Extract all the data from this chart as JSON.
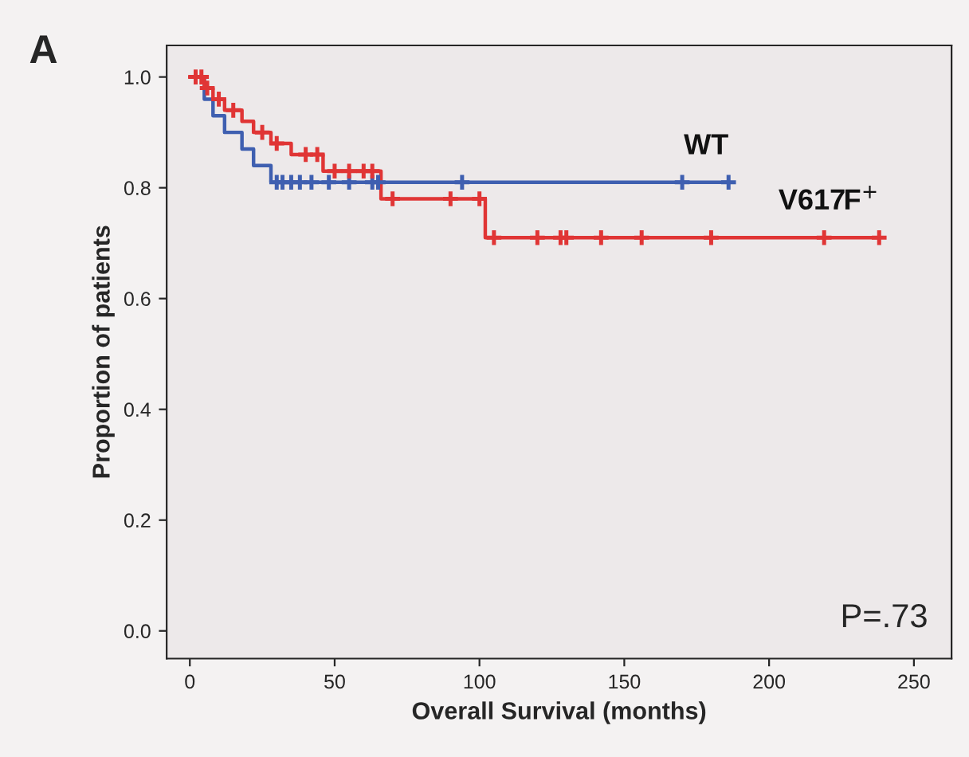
{
  "chart_data": {
    "type": "step",
    "xlabel": "Overall Survival (months)",
    "ylabel": "Proportion of patients",
    "annotations": [
      "A",
      "P=.73"
    ],
    "xlim": [
      -8,
      263
    ],
    "ylim": [
      -0.05,
      1.057
    ],
    "xticks": [
      0,
      50,
      100,
      150,
      200,
      250
    ],
    "yticks": [
      {
        "value": 0,
        "label": "0.0"
      },
      {
        "value": 0.2,
        "label": "0.2"
      },
      {
        "value": 0.4,
        "label": "0.4"
      },
      {
        "value": 0.6,
        "label": "0.6"
      },
      {
        "value": 0.8,
        "label": "0.8"
      },
      {
        "value": 1.0,
        "label": "1.0"
      }
    ],
    "series": [
      {
        "name": "WT",
        "color": "#3f5fb0",
        "x": [
          0,
          5,
          8,
          12,
          18,
          22,
          28,
          186
        ],
        "values": [
          1.0,
          0.96,
          0.93,
          0.9,
          0.87,
          0.84,
          0.81,
          0.81
        ]
      },
      {
        "name": "V617F$^{+}$",
        "color": "#e03535",
        "x": [
          0,
          5,
          8,
          12,
          18,
          22,
          28,
          35,
          38,
          46,
          66,
          102,
          238
        ],
        "values": [
          1.0,
          0.98,
          0.96,
          0.94,
          0.92,
          0.9,
          0.88,
          0.86,
          0.86,
          0.83,
          0.78,
          0.71,
          0.71
        ]
      },
      {
        "type": "scatter",
        "marker": "cross",
        "color": "#3f5fb0",
        "x": [
          30,
          32,
          35,
          38,
          42,
          48,
          55,
          63,
          65,
          94,
          170,
          186
        ],
        "values": [
          0.81,
          0.81,
          0.81,
          0.81,
          0.81,
          0.81,
          0.81,
          0.81,
          0.81,
          0.81,
          0.81,
          0.81
        ]
      },
      {
        "type": "scatter",
        "marker": "cross",
        "color": "#e03535",
        "x": [
          2,
          4,
          6,
          10,
          15,
          25,
          30,
          40,
          44,
          50,
          55,
          60,
          63,
          70,
          90,
          100,
          105,
          120,
          128,
          130,
          142,
          156,
          180,
          219,
          238
        ],
        "values": [
          1.0,
          1.0,
          0.98,
          0.96,
          0.94,
          0.9,
          0.88,
          0.86,
          0.86,
          0.83,
          0.83,
          0.83,
          0.83,
          0.78,
          0.78,
          0.78,
          0.71,
          0.71,
          0.71,
          0.71,
          0.71,
          0.71,
          0.71,
          0.71,
          0.71
        ]
      }
    ]
  }
}
